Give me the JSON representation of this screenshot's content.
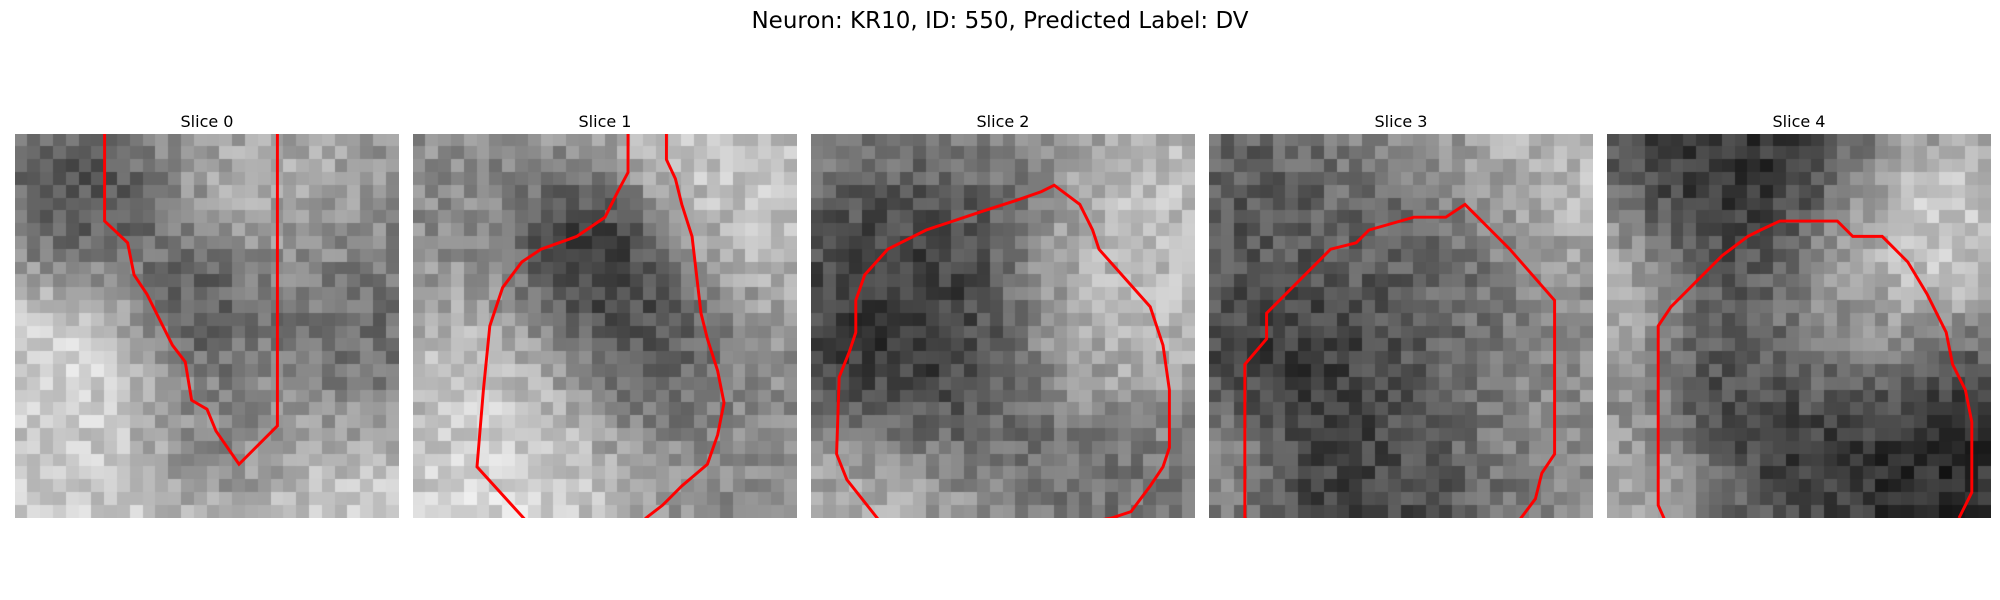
{
  "suptitle": "Neuron: KR10, ID: 550, Predicted Label: DV",
  "contour_color": "#ff0000",
  "panels": [
    {
      "title": "Slice 0",
      "contour": [
        [
          70,
          0
        ],
        [
          70,
          68
        ],
        [
          88,
          85
        ],
        [
          93,
          110
        ],
        [
          103,
          125
        ],
        [
          113,
          145
        ],
        [
          123,
          165
        ],
        [
          133,
          178
        ],
        [
          138,
          208
        ],
        [
          150,
          215
        ],
        [
          157,
          232
        ],
        [
          175,
          258
        ],
        [
          205,
          228
        ],
        [
          205,
          0
        ]
      ],
      "blobs": [
        [
          55,
          160,
          45,
          0.95
        ],
        [
          195,
          60,
          50,
          0.7
        ],
        [
          170,
          330,
          120,
          0.95
        ],
        [
          20,
          280,
          40,
          0.8
        ],
        [
          140,
          140,
          40,
          0.05
        ],
        [
          160,
          250,
          40,
          0.25
        ],
        [
          60,
          70,
          40,
          0.2
        ],
        [
          260,
          160,
          50,
          0.25
        ]
      ]
    },
    {
      "title": "Slice 1",
      "contour": [
        [
          168,
          0
        ],
        [
          168,
          30
        ],
        [
          160,
          45
        ],
        [
          150,
          65
        ],
        [
          128,
          80
        ],
        [
          100,
          90
        ],
        [
          85,
          100
        ],
        [
          70,
          120
        ],
        [
          60,
          150
        ],
        [
          55,
          200
        ],
        [
          50,
          260
        ],
        [
          100,
          315
        ],
        [
          170,
          315
        ],
        [
          182,
          300
        ],
        [
          195,
          290
        ],
        [
          210,
          275
        ],
        [
          230,
          258
        ],
        [
          238,
          235
        ],
        [
          243,
          210
        ],
        [
          238,
          185
        ],
        [
          230,
          160
        ],
        [
          225,
          140
        ],
        [
          218,
          80
        ],
        [
          210,
          55
        ],
        [
          205,
          35
        ],
        [
          198,
          20
        ],
        [
          198,
          0
        ]
      ],
      "blobs": [
        [
          80,
          200,
          50,
          0.9
        ],
        [
          150,
          140,
          50,
          0.15
        ],
        [
          60,
          330,
          60,
          0.95
        ],
        [
          250,
          30,
          60,
          0.85
        ],
        [
          150,
          90,
          30,
          0.1
        ]
      ]
    },
    {
      "title": "Slice 2",
      "contour": [
        [
          58,
          308
        ],
        [
          28,
          270
        ],
        [
          20,
          250
        ],
        [
          22,
          190
        ],
        [
          30,
          170
        ],
        [
          35,
          155
        ],
        [
          35,
          130
        ],
        [
          42,
          110
        ],
        [
          60,
          90
        ],
        [
          90,
          75
        ],
        [
          105,
          70
        ],
        [
          135,
          60
        ],
        [
          160,
          52
        ],
        [
          180,
          45
        ],
        [
          190,
          40
        ],
        [
          210,
          55
        ],
        [
          220,
          75
        ],
        [
          225,
          90
        ],
        [
          265,
          135
        ],
        [
          275,
          165
        ],
        [
          280,
          200
        ],
        [
          280,
          245
        ],
        [
          275,
          260
        ],
        [
          265,
          275
        ],
        [
          250,
          295
        ],
        [
          235,
          300
        ],
        [
          205,
          305
        ]
      ],
      "blobs": [
        [
          80,
          160,
          70,
          0.1
        ],
        [
          230,
          150,
          50,
          0.85
        ],
        [
          210,
          270,
          60,
          0.4
        ],
        [
          100,
          330,
          60,
          0.7
        ],
        [
          40,
          290,
          40,
          0.8
        ],
        [
          280,
          50,
          40,
          0.8
        ]
      ]
    },
    {
      "title": "Slice 3",
      "contour": [
        [
          38,
          308
        ],
        [
          28,
          300
        ],
        [
          28,
          180
        ],
        [
          45,
          160
        ],
        [
          45,
          140
        ],
        [
          70,
          115
        ],
        [
          95,
          90
        ],
        [
          115,
          85
        ],
        [
          125,
          75
        ],
        [
          160,
          65
        ],
        [
          185,
          65
        ],
        [
          200,
          55
        ],
        [
          210,
          65
        ],
        [
          220,
          75
        ],
        [
          235,
          90
        ],
        [
          270,
          130
        ],
        [
          270,
          250
        ],
        [
          260,
          265
        ],
        [
          255,
          285
        ],
        [
          240,
          305
        ]
      ],
      "blobs": [
        [
          70,
          200,
          60,
          0.1
        ],
        [
          180,
          120,
          60,
          0.35
        ],
        [
          230,
          220,
          50,
          0.6
        ],
        [
          150,
          270,
          60,
          0.2
        ],
        [
          30,
          60,
          40,
          0.3
        ],
        [
          270,
          40,
          50,
          0.8
        ],
        [
          20,
          250,
          30,
          0.7
        ]
      ]
    },
    {
      "title": "Slice 4",
      "contour": [
        [
          48,
          308
        ],
        [
          40,
          290
        ],
        [
          40,
          150
        ],
        [
          50,
          135
        ],
        [
          70,
          115
        ],
        [
          90,
          95
        ],
        [
          110,
          80
        ],
        [
          120,
          75
        ],
        [
          135,
          68
        ],
        [
          180,
          68
        ],
        [
          192,
          80
        ],
        [
          215,
          80
        ],
        [
          235,
          100
        ],
        [
          250,
          125
        ],
        [
          265,
          155
        ],
        [
          270,
          180
        ],
        [
          280,
          200
        ],
        [
          285,
          225
        ],
        [
          285,
          280
        ],
        [
          275,
          300
        ]
      ],
      "blobs": [
        [
          100,
          50,
          60,
          0.05
        ],
        [
          180,
          140,
          50,
          0.85
        ],
        [
          130,
          200,
          60,
          0.1
        ],
        [
          250,
          260,
          60,
          0.05
        ],
        [
          20,
          120,
          40,
          0.85
        ],
        [
          250,
          80,
          40,
          0.9
        ],
        [
          30,
          260,
          40,
          0.7
        ]
      ]
    }
  ]
}
